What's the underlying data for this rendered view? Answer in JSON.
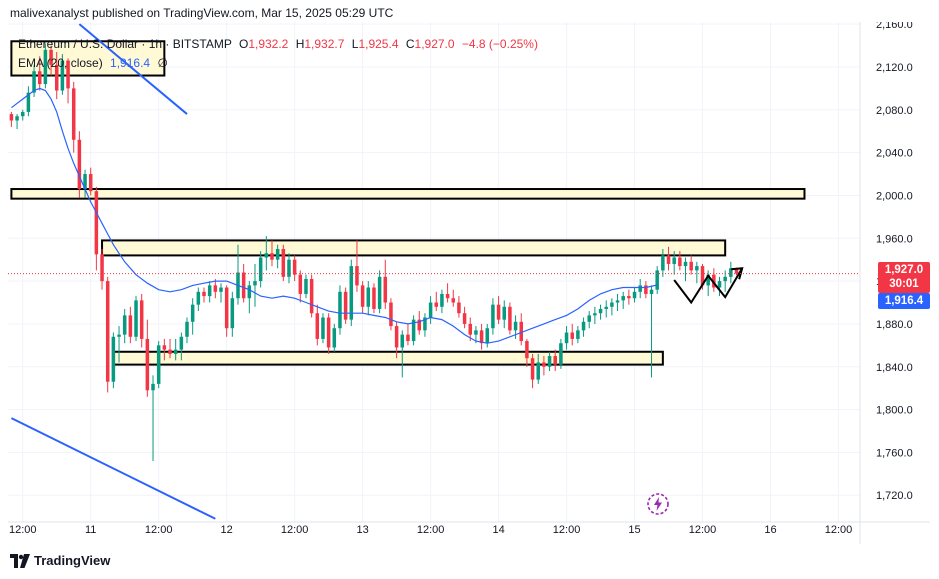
{
  "header": {
    "publish_line": "malivexanalyst published on TradingView.com, Mar 15, 2025 05:29 UTC"
  },
  "legend": {
    "symbol": "Ethereum / U.S. Dollar · 1h · BITSTAMP",
    "open_key": "O",
    "open": "1,932.2",
    "high_key": "H",
    "high": "1,932.7",
    "low_key": "L",
    "low": "1,925.4",
    "close_key": "C",
    "close": "1,927.0",
    "change": "−4.8 (−0.25%)",
    "ema_label": "EMA (20, close)",
    "ema_value": "1,916.4",
    "ema_visibility": "∅"
  },
  "price_tags": {
    "last_price": "1,927.0",
    "countdown": "30:01",
    "ema_price": "1,916.4"
  },
  "footer": {
    "brand": "TradingView"
  },
  "colors": {
    "up": "#089981",
    "down": "#f23645",
    "ema": "#2962ff",
    "trendline": "#2962ff",
    "zone_fill": "#fff9d6",
    "zone_border": "#000000"
  },
  "chart_data": {
    "type": "candlestick",
    "title": "",
    "yticks": [
      "2,160.0",
      "2,120.0",
      "2,080.0",
      "2,040.0",
      "2,000.0",
      "1,960.0",
      "1,920.0",
      "1,880.0",
      "1,840.0",
      "1,800.0",
      "1,760.0",
      "1,720.0"
    ],
    "ytick_values": [
      2160,
      2120,
      2080,
      2040,
      2000,
      1960,
      1920,
      1880,
      1840,
      1800,
      1760,
      1720
    ],
    "ylim": [
      1695,
      2162
    ],
    "xticks": [
      "12:00",
      "11",
      "12:00",
      "12",
      "12:00",
      "13",
      "12:00",
      "14",
      "12:00",
      "15",
      "12:00",
      "16",
      "12:00"
    ],
    "xtick_hours": [
      -36,
      -24,
      -12,
      0,
      12,
      24,
      36,
      48,
      60,
      72,
      84,
      96,
      108
    ],
    "xlim_hours": [
      -38.6,
      111.8
    ],
    "candle_start_hour": -38,
    "candles": [
      [
        2076,
        2078,
        2064,
        2070
      ],
      [
        2070,
        2076,
        2062,
        2074
      ],
      [
        2074,
        2080,
        2070,
        2078
      ],
      [
        2078,
        2102,
        2074,
        2096
      ],
      [
        2096,
        2122,
        2092,
        2116
      ],
      [
        2116,
        2130,
        2098,
        2104
      ],
      [
        2104,
        2142,
        2100,
        2136
      ],
      [
        2136,
        2140,
        2112,
        2122
      ],
      [
        2122,
        2134,
        2090,
        2098
      ],
      [
        2098,
        2132,
        2094,
        2126
      ],
      [
        2126,
        2128,
        2086,
        2100
      ],
      [
        2100,
        2106,
        2040,
        2052
      ],
      [
        2052,
        2060,
        1998,
        2006
      ],
      [
        2006,
        2024,
        1998,
        2020
      ],
      [
        2020,
        2026,
        2000,
        2004
      ],
      [
        2004,
        2008,
        1930,
        1945
      ],
      [
        1945,
        1950,
        1912,
        1920
      ],
      [
        1920,
        1924,
        1816,
        1826
      ],
      [
        1826,
        1872,
        1820,
        1868
      ],
      [
        1868,
        1878,
        1844,
        1870
      ],
      [
        1870,
        1894,
        1862,
        1888
      ],
      [
        1888,
        1896,
        1862,
        1868
      ],
      [
        1868,
        1906,
        1864,
        1902
      ],
      [
        1902,
        1908,
        1858,
        1866
      ],
      [
        1866,
        1884,
        1812,
        1818
      ],
      [
        1818,
        1832,
        1752,
        1824
      ],
      [
        1824,
        1864,
        1820,
        1860
      ],
      [
        1860,
        1866,
        1846,
        1856
      ],
      [
        1856,
        1866,
        1848,
        1852
      ],
      [
        1852,
        1866,
        1846,
        1856
      ],
      [
        1856,
        1872,
        1846,
        1868
      ],
      [
        1868,
        1886,
        1862,
        1882
      ],
      [
        1882,
        1904,
        1870,
        1898
      ],
      [
        1898,
        1914,
        1892,
        1910
      ],
      [
        1910,
        1914,
        1900,
        1906
      ],
      [
        1906,
        1920,
        1900,
        1916
      ],
      [
        1916,
        1922,
        1904,
        1910
      ],
      [
        1910,
        1918,
        1900,
        1914
      ],
      [
        1914,
        1916,
        1868,
        1876
      ],
      [
        1876,
        1910,
        1868,
        1904
      ],
      [
        1904,
        1954,
        1898,
        1928
      ],
      [
        1928,
        1936,
        1900,
        1904
      ],
      [
        1904,
        1920,
        1890,
        1916
      ],
      [
        1916,
        1936,
        1896,
        1920
      ],
      [
        1920,
        1948,
        1914,
        1942
      ],
      [
        1942,
        1962,
        1930,
        1946
      ],
      [
        1946,
        1958,
        1934,
        1940
      ],
      [
        1940,
        1954,
        1932,
        1950
      ],
      [
        1950,
        1954,
        1920,
        1924
      ],
      [
        1924,
        1946,
        1918,
        1940
      ],
      [
        1940,
        1944,
        1920,
        1926
      ],
      [
        1926,
        1930,
        1900,
        1908
      ],
      [
        1908,
        1926,
        1904,
        1922
      ],
      [
        1922,
        1926,
        1886,
        1890
      ],
      [
        1890,
        1898,
        1860,
        1866
      ],
      [
        1866,
        1890,
        1862,
        1886
      ],
      [
        1886,
        1890,
        1852,
        1858
      ],
      [
        1858,
        1880,
        1854,
        1876
      ],
      [
        1876,
        1916,
        1870,
        1910
      ],
      [
        1910,
        1914,
        1880,
        1884
      ],
      [
        1884,
        1940,
        1878,
        1934
      ],
      [
        1934,
        1958,
        1910,
        1916
      ],
      [
        1916,
        1920,
        1890,
        1896
      ],
      [
        1896,
        1920,
        1888,
        1914
      ],
      [
        1914,
        1918,
        1890,
        1894
      ],
      [
        1894,
        1930,
        1890,
        1924
      ],
      [
        1924,
        1940,
        1894,
        1900
      ],
      [
        1900,
        1904,
        1874,
        1878
      ],
      [
        1878,
        1882,
        1848,
        1858
      ],
      [
        1858,
        1874,
        1830,
        1870
      ],
      [
        1870,
        1880,
        1860,
        1864
      ],
      [
        1864,
        1888,
        1860,
        1884
      ],
      [
        1884,
        1892,
        1870,
        1874
      ],
      [
        1874,
        1890,
        1868,
        1886
      ],
      [
        1886,
        1906,
        1880,
        1900
      ],
      [
        1900,
        1910,
        1892,
        1896
      ],
      [
        1896,
        1912,
        1890,
        1908
      ],
      [
        1908,
        1918,
        1900,
        1904
      ],
      [
        1904,
        1912,
        1896,
        1900
      ],
      [
        1900,
        1906,
        1886,
        1890
      ],
      [
        1890,
        1896,
        1876,
        1880
      ],
      [
        1880,
        1886,
        1864,
        1870
      ],
      [
        1870,
        1878,
        1862,
        1874
      ],
      [
        1874,
        1880,
        1856,
        1862
      ],
      [
        1862,
        1880,
        1858,
        1876
      ],
      [
        1876,
        1904,
        1870,
        1898
      ],
      [
        1898,
        1906,
        1880,
        1884
      ],
      [
        1884,
        1902,
        1876,
        1896
      ],
      [
        1896,
        1900,
        1870,
        1874
      ],
      [
        1874,
        1888,
        1866,
        1882
      ],
      [
        1882,
        1890,
        1860,
        1864
      ],
      [
        1864,
        1866,
        1840,
        1848
      ],
      [
        1848,
        1852,
        1820,
        1828
      ],
      [
        1828,
        1852,
        1824,
        1844
      ],
      [
        1844,
        1850,
        1832,
        1840
      ],
      [
        1840,
        1854,
        1836,
        1850
      ],
      [
        1850,
        1856,
        1836,
        1842
      ],
      [
        1842,
        1866,
        1838,
        1862
      ],
      [
        1862,
        1878,
        1856,
        1872
      ],
      [
        1872,
        1880,
        1860,
        1866
      ],
      [
        1866,
        1878,
        1862,
        1874
      ],
      [
        1874,
        1886,
        1868,
        1882
      ],
      [
        1882,
        1892,
        1876,
        1888
      ],
      [
        1888,
        1896,
        1880,
        1890
      ],
      [
        1890,
        1898,
        1884,
        1894
      ],
      [
        1894,
        1902,
        1886,
        1896
      ],
      [
        1896,
        1904,
        1888,
        1900
      ],
      [
        1900,
        1908,
        1892,
        1902
      ],
      [
        1902,
        1910,
        1894,
        1906
      ],
      [
        1906,
        1912,
        1898,
        1904
      ],
      [
        1904,
        1914,
        1900,
        1910
      ],
      [
        1910,
        1922,
        1904,
        1916
      ],
      [
        1916,
        1920,
        1904,
        1908
      ],
      [
        1908,
        1916,
        1830,
        1912
      ],
      [
        1912,
        1934,
        1908,
        1930
      ],
      [
        1930,
        1950,
        1924,
        1944
      ],
      [
        1944,
        1952,
        1930,
        1936
      ],
      [
        1936,
        1948,
        1926,
        1942
      ],
      [
        1942,
        1948,
        1930,
        1934
      ],
      [
        1934,
        1942,
        1920,
        1938
      ],
      [
        1938,
        1944,
        1926,
        1930
      ],
      [
        1930,
        1938,
        1918,
        1934
      ],
      [
        1934,
        1936,
        1912,
        1916
      ],
      [
        1916,
        1930,
        1906,
        1926
      ],
      [
        1926,
        1932,
        1910,
        1914
      ],
      [
        1914,
        1924,
        1906,
        1920
      ],
      [
        1920,
        1930,
        1910,
        1924
      ],
      [
        1924,
        1938,
        1918,
        1932
      ],
      [
        1932.2,
        1932.7,
        1925.4,
        1927.0
      ]
    ],
    "ema": {
      "name": "EMA (20, close)",
      "points": [
        [
          -38,
          2082
        ],
        [
          -36,
          2090
        ],
        [
          -34,
          2098
        ],
        [
          -33,
          2100
        ],
        [
          -32,
          2098
        ],
        [
          -31,
          2090
        ],
        [
          -30,
          2078
        ],
        [
          -29,
          2060
        ],
        [
          -28,
          2044
        ],
        [
          -27,
          2030
        ],
        [
          -26,
          2018
        ],
        [
          -25,
          2006
        ],
        [
          -24,
          1994
        ],
        [
          -23,
          1984
        ],
        [
          -22,
          1974
        ],
        [
          -21,
          1964
        ],
        [
          -20,
          1954
        ],
        [
          -19,
          1946
        ],
        [
          -18,
          1938
        ],
        [
          -16,
          1926
        ],
        [
          -14,
          1918
        ],
        [
          -12,
          1912
        ],
        [
          -10,
          1910
        ],
        [
          -8,
          1912
        ],
        [
          -6,
          1916
        ],
        [
          -4,
          1918
        ],
        [
          -2,
          1920
        ],
        [
          0,
          1920
        ],
        [
          2,
          1916
        ],
        [
          4,
          1912
        ],
        [
          6,
          1906
        ],
        [
          8,
          1904
        ],
        [
          10,
          1906
        ],
        [
          12,
          1904
        ],
        [
          14,
          1900
        ],
        [
          16,
          1896
        ],
        [
          18,
          1892
        ],
        [
          20,
          1890
        ],
        [
          22,
          1890
        ],
        [
          24,
          1890
        ],
        [
          26,
          1888
        ],
        [
          28,
          1886
        ],
        [
          30,
          1882
        ],
        [
          32,
          1880
        ],
        [
          34,
          1882
        ],
        [
          36,
          1886
        ],
        [
          38,
          1884
        ],
        [
          40,
          1878
        ],
        [
          42,
          1870
        ],
        [
          44,
          1864
        ],
        [
          46,
          1862
        ],
        [
          48,
          1864
        ],
        [
          50,
          1868
        ],
        [
          52,
          1872
        ],
        [
          54,
          1876
        ],
        [
          56,
          1880
        ],
        [
          58,
          1884
        ],
        [
          60,
          1888
        ],
        [
          62,
          1894
        ],
        [
          64,
          1902
        ],
        [
          66,
          1908
        ],
        [
          68,
          1912
        ],
        [
          70,
          1914
        ],
        [
          72,
          1914
        ],
        [
          74,
          1914
        ],
        [
          76,
          1916.4
        ]
      ]
    },
    "current_price": 1927.0,
    "trendlines": [
      {
        "from": [
          -26,
          2160
        ],
        "to": [
          -7,
          2076
        ]
      },
      {
        "from": [
          -38,
          1792
        ],
        "to": [
          -2,
          1698
        ]
      }
    ],
    "zones": [
      {
        "x": [
          -38,
          -11
        ],
        "y": [
          2112,
          2144
        ]
      },
      {
        "x": [
          -38,
          102
        ],
        "y": [
          1997,
          2006
        ]
      },
      {
        "x": [
          -22,
          88
        ],
        "y": [
          1944,
          1958
        ]
      },
      {
        "x": [
          -20,
          77
        ],
        "y": [
          1842,
          1854
        ]
      }
    ],
    "projection_path": [
      [
        79,
        1921
      ],
      [
        82,
        1900
      ],
      [
        85,
        1925
      ],
      [
        88,
        1905
      ],
      [
        91,
        1932
      ]
    ]
  }
}
